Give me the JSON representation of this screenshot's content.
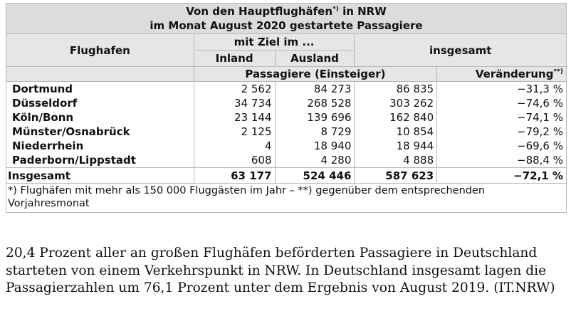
{
  "table": {
    "title_line1_a": "Von den Hauptflughäfen",
    "title_line1_sup": "*)",
    "title_line1_b": " in NRW",
    "title_line2": "im Monat August 2020 gestartete Passagiere",
    "col_flughafen": "Flughafen",
    "col_mit_ziel": "mit Ziel im ...",
    "col_inland": "Inland",
    "col_ausland": "Ausland",
    "col_insgesamt": "insgesamt",
    "col_passagiere": "Passagiere (Einsteiger)",
    "col_veraenderung": "Veränderung",
    "col_veraenderung_sup": "**)",
    "rows": [
      {
        "name": "Dortmund",
        "inland": "2 562",
        "ausland": "84 273",
        "insgesamt": "86 835",
        "change": "−31,3 %"
      },
      {
        "name": "Düsseldorf",
        "inland": "34 734",
        "ausland": "268 528",
        "insgesamt": "303 262",
        "change": "−74,6 %"
      },
      {
        "name": "Köln/Bonn",
        "inland": "23 144",
        "ausland": "139 696",
        "insgesamt": "162 840",
        "change": "−74,1 %"
      },
      {
        "name": "Münster/Osnabrück",
        "inland": "2 125",
        "ausland": "8 729",
        "insgesamt": "10 854",
        "change": "−79,2 %"
      },
      {
        "name": "Niederrhein",
        "inland": "4",
        "ausland": "18 940",
        "insgesamt": "18 944",
        "change": "−69,6 %"
      },
      {
        "name": "Paderborn/Lippstadt",
        "inland": "608",
        "ausland": "4 280",
        "insgesamt": "4 888",
        "change": "−88,4 %"
      }
    ],
    "total": {
      "name": "Insgesamt",
      "inland": "63 177",
      "ausland": "524 446",
      "insgesamt": "587 623",
      "change": "−72,1 %"
    },
    "footnote": "*) Flughäfen mit mehr als 150 000 Fluggästen im Jahr – **) gegenüber dem entsprechenden Vorjahresmonat"
  },
  "caption": "20,4 Prozent aller an großen Flughäfen beförderten Passagiere in Deutschland starteten von einem Verkehrspunkt in NRW. In Deutschland insgesamt lagen die Passagierzahlen um 76,1 Prozent unter dem Ergebnis von August 2019. (IT.NRW)"
}
